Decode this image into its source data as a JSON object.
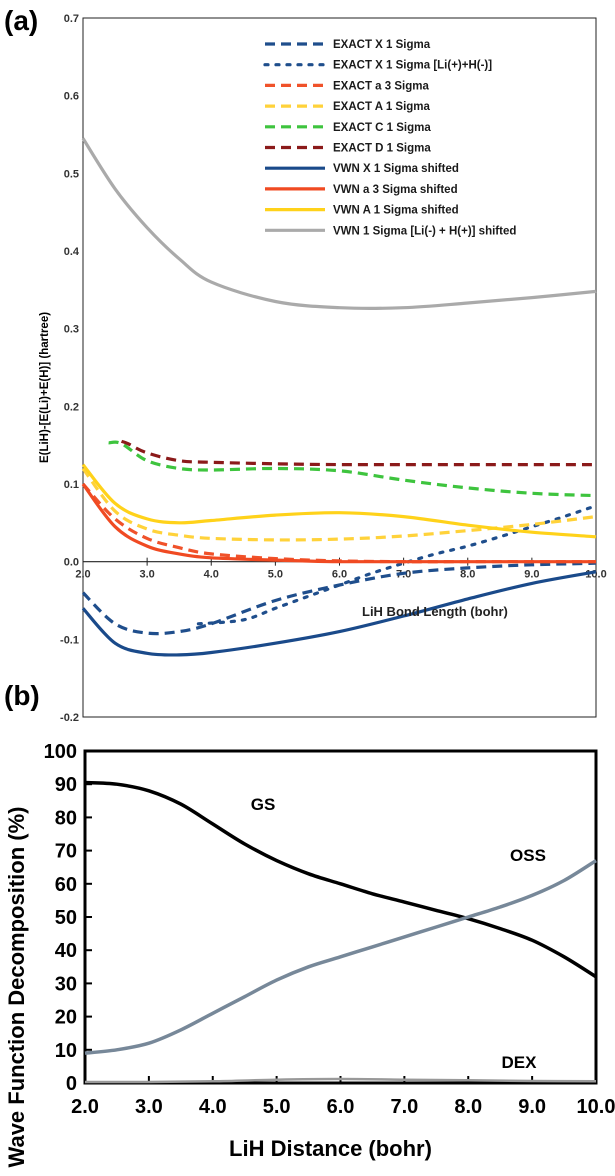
{
  "panel_a_label": "(a)",
  "panel_b_label": "(b)",
  "chart_data": [
    {
      "type": "line",
      "panel": "(a)",
      "xlabel": "LiH Bond Length (bohr)",
      "ylabel": "E(LiH)-[E(Li)+E(H)] (hartree)",
      "xlim": [
        2.0,
        10.0
      ],
      "ylim": [
        -0.2,
        0.7
      ],
      "xticks": [
        "2.0",
        "3.0",
        "4.0",
        "5.0",
        "6.0",
        "7.0",
        "8.0",
        "9.0",
        "10.0"
      ],
      "yticks": [
        "-0.2",
        "-0.1",
        "0.0",
        "0.1",
        "0.2",
        "0.3",
        "0.4",
        "0.5",
        "0.6",
        "0.7"
      ],
      "legend_position": "top-right",
      "series": [
        {
          "name": "EXACT X 1 Sigma",
          "color": "#1f4e8c",
          "dash": "dashed",
          "x": [
            2.0,
            2.5,
            3.0,
            3.5,
            4.0,
            5.0,
            6.0,
            7.0,
            8.0,
            9.0,
            10.0
          ],
          "y": [
            -0.04,
            -0.08,
            -0.092,
            -0.09,
            -0.08,
            -0.05,
            -0.03,
            -0.015,
            -0.008,
            -0.004,
            -0.002
          ]
        },
        {
          "name": "EXACT X 1 Sigma  [Li(+)+H(-)]",
          "color": "#1f4e8c",
          "dash": "dotted",
          "x": [
            3.8,
            4.5,
            5.0,
            5.5,
            6.0,
            6.5,
            7.0,
            7.5,
            8.0,
            8.5,
            9.0,
            9.5,
            10.0
          ],
          "y": [
            -0.08,
            -0.075,
            -0.06,
            -0.045,
            -0.03,
            -0.015,
            -0.002,
            0.01,
            0.02,
            0.032,
            0.045,
            0.058,
            0.072
          ]
        },
        {
          "name": "EXACT a 3 Sigma",
          "color": "#f0522a",
          "dash": "dashed",
          "x": [
            2.0,
            2.5,
            3.0,
            3.5,
            4.0,
            5.0,
            6.0,
            7.0,
            8.0,
            10.0
          ],
          "y": [
            0.1,
            0.055,
            0.03,
            0.018,
            0.01,
            0.004,
            0.001,
            0.0,
            0.0,
            0.0
          ]
        },
        {
          "name": "EXACT A 1 Sigma",
          "color": "#ffd23a",
          "dash": "dashed",
          "x": [
            2.0,
            2.5,
            3.0,
            3.5,
            4.0,
            5.0,
            6.0,
            7.0,
            8.0,
            9.0,
            10.0
          ],
          "y": [
            0.12,
            0.065,
            0.042,
            0.034,
            0.03,
            0.028,
            0.029,
            0.033,
            0.04,
            0.048,
            0.058
          ]
        },
        {
          "name": "EXACT C 1 Sigma",
          "color": "#3ec43e",
          "dash": "dashed",
          "x": [
            2.4,
            2.6,
            3.0,
            3.5,
            4.0,
            5.0,
            6.0,
            7.0,
            8.0,
            9.0,
            10.0
          ],
          "y": [
            0.153,
            0.152,
            0.13,
            0.12,
            0.118,
            0.12,
            0.117,
            0.105,
            0.095,
            0.088,
            0.085
          ]
        },
        {
          "name": "EXACT D 1 Sigma",
          "color": "#8b1a1a",
          "dash": "dashed",
          "x": [
            2.6,
            2.7,
            3.0,
            3.5,
            4.0,
            5.0,
            6.0,
            7.0,
            8.0,
            9.0,
            10.0
          ],
          "y": [
            0.155,
            0.152,
            0.14,
            0.13,
            0.128,
            0.126,
            0.125,
            0.125,
            0.125,
            0.125,
            0.125
          ]
        },
        {
          "name": "VWN X 1 Sigma shifted",
          "color": "#1a4a8a",
          "dash": "solid",
          "x": [
            2.0,
            2.5,
            3.0,
            3.5,
            4.0,
            5.0,
            6.0,
            7.0,
            8.0,
            9.0,
            10.0
          ],
          "y": [
            -0.06,
            -0.105,
            -0.118,
            -0.12,
            -0.117,
            -0.105,
            -0.09,
            -0.07,
            -0.048,
            -0.028,
            -0.013
          ]
        },
        {
          "name": "VWN a 3 Sigma shifted",
          "color": "#f04a22",
          "dash": "solid",
          "x": [
            2.0,
            2.5,
            3.0,
            3.5,
            4.0,
            5.0,
            6.0,
            7.0,
            8.0,
            10.0
          ],
          "y": [
            0.1,
            0.045,
            0.02,
            0.01,
            0.005,
            0.002,
            0.0,
            0.0,
            0.0,
            0.0
          ]
        },
        {
          "name": "VWN  A 1 Sigma shifted",
          "color": "#ffd21a",
          "dash": "solid",
          "x": [
            2.0,
            2.5,
            3.0,
            3.5,
            4.0,
            5.0,
            6.0,
            7.0,
            8.0,
            9.0,
            10.0
          ],
          "y": [
            0.125,
            0.075,
            0.055,
            0.05,
            0.053,
            0.06,
            0.063,
            0.058,
            0.047,
            0.038,
            0.032
          ]
        },
        {
          "name": "VWN 1 Sigma [Li(-) + H(+)] shifted",
          "color": "#aaaaaa",
          "dash": "solid",
          "x": [
            2.0,
            2.5,
            3.0,
            3.5,
            4.0,
            5.0,
            6.0,
            7.0,
            8.0,
            9.0,
            10.0
          ],
          "y": [
            0.545,
            0.48,
            0.43,
            0.39,
            0.36,
            0.335,
            0.327,
            0.327,
            0.333,
            0.34,
            0.348
          ]
        }
      ]
    },
    {
      "type": "line",
      "panel": "(b)",
      "xlabel": "LiH Distance (bohr)",
      "ylabel": "Wave Function Decomposition (%)",
      "xlim": [
        2.0,
        10.0
      ],
      "ylim": [
        0,
        100
      ],
      "xticks": [
        "2.0",
        "3.0",
        "4.0",
        "5.0",
        "6.0",
        "7.0",
        "8.0",
        "9.0",
        "10.0"
      ],
      "yticks": [
        "0",
        "10",
        "20",
        "30",
        "40",
        "50",
        "60",
        "70",
        "80",
        "90",
        "100"
      ],
      "annotations": [
        "GS",
        "OSS",
        "DEX"
      ],
      "series": [
        {
          "name": "GS",
          "color": "#000000",
          "x": [
            2.0,
            2.5,
            3.0,
            3.5,
            4.0,
            4.5,
            5.0,
            5.5,
            6.0,
            6.5,
            7.0,
            7.5,
            8.0,
            8.5,
            9.0,
            9.5,
            10.0
          ],
          "y": [
            90.5,
            90,
            88,
            84,
            78,
            72,
            67,
            63,
            60,
            57,
            54.5,
            52,
            49.5,
            46.5,
            43,
            38,
            32
          ]
        },
        {
          "name": "OSS",
          "color": "#778899",
          "x": [
            2.0,
            2.5,
            3.0,
            3.5,
            4.0,
            4.5,
            5.0,
            5.5,
            6.0,
            6.5,
            7.0,
            7.5,
            8.0,
            8.5,
            9.0,
            9.5,
            10.0
          ],
          "y": [
            9,
            10,
            12,
            16,
            21,
            26,
            31,
            35,
            38,
            41,
            44,
            47,
            50,
            53,
            56.5,
            61,
            67
          ]
        },
        {
          "name": "DEX",
          "color": "#999999",
          "x": [
            2.0,
            3.0,
            4.0,
            5.0,
            6.0,
            7.0,
            8.0,
            9.0,
            10.0
          ],
          "y": [
            0.3,
            0.3,
            0.5,
            1.0,
            1.2,
            1.0,
            0.8,
            0.6,
            0.5
          ]
        }
      ]
    }
  ]
}
